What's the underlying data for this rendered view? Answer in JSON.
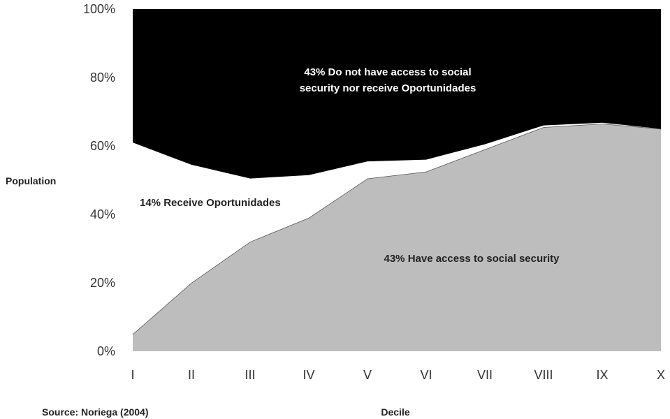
{
  "chart_data": {
    "type": "area",
    "stacked": true,
    "categories": [
      "I",
      "II",
      "III",
      "IV",
      "V",
      "VI",
      "VII",
      "VIII",
      "IX",
      "X"
    ],
    "series": [
      {
        "key": "social",
        "values": [
          5,
          20,
          32,
          39,
          50.5,
          52.5,
          59,
          65.5,
          66.5,
          65
        ],
        "color": "#bdbdbd"
      },
      {
        "key": "oport",
        "values": [
          56,
          34.5,
          18.5,
          12.5,
          5,
          3.5,
          1.5,
          0.5,
          0.3,
          0
        ],
        "color": "#ffffff"
      },
      {
        "key": "none",
        "values": [
          39,
          45.5,
          49.5,
          48.5,
          44.5,
          44,
          39.5,
          34,
          33.2,
          35
        ],
        "color": "#000000"
      }
    ],
    "xlabel": "Decile",
    "ylabel": "Population",
    "ylim": [
      0,
      100
    ],
    "yticks": [
      "0%",
      "20%",
      "40%",
      "60%",
      "80%",
      "100%"
    ],
    "annotations": {
      "none_line1": "43% Do not have access to social",
      "none_line2": "security nor receive Oportunidades",
      "oport": "14% Receive Oportunidades",
      "social": "43% Have access to social security"
    },
    "source": "Source: Noriega (2004)"
  }
}
